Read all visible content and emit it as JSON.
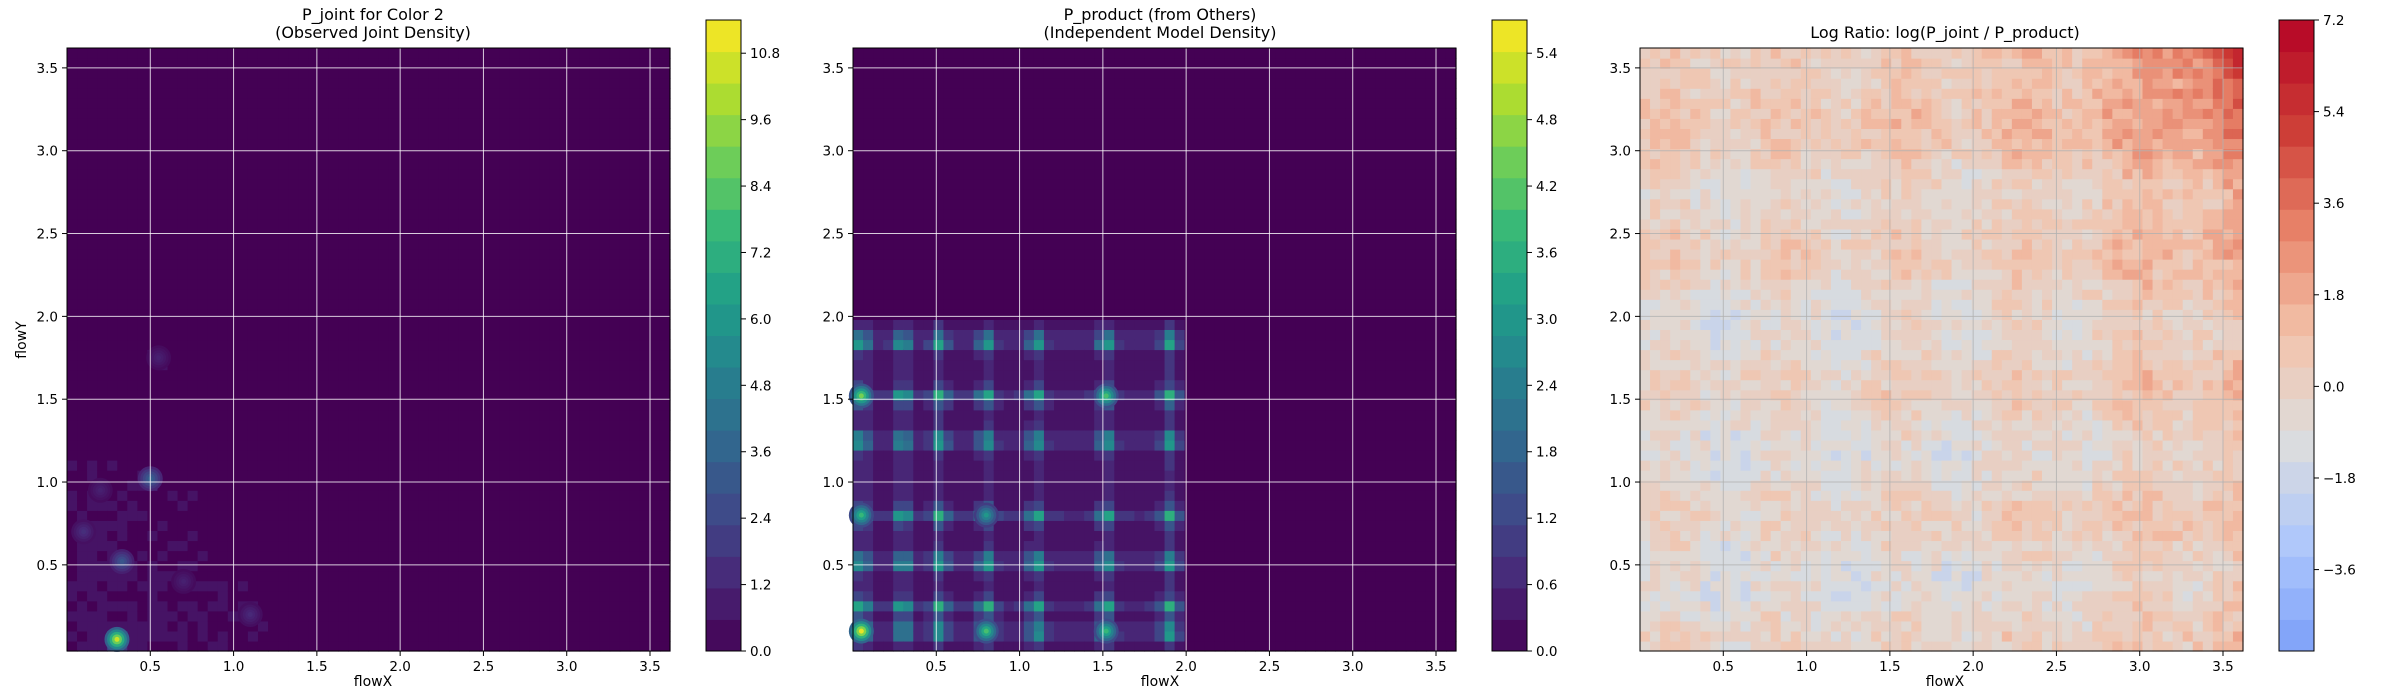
{
  "chart_data": [
    {
      "type": "heatmap",
      "title": "P_joint for Color 2",
      "subtitle": "(Observed Joint Density)",
      "xlabel": "flowX",
      "ylabel": "flowY",
      "xlim": [
        0.0,
        3.62
      ],
      "ylim": [
        -0.02,
        3.62
      ],
      "xticks": [
        "0.5",
        "1.0",
        "1.5",
        "2.0",
        "2.5",
        "3.0",
        "3.5"
      ],
      "yticks": [
        "0.5",
        "1.0",
        "1.5",
        "2.0",
        "2.5",
        "3.0",
        "3.5"
      ],
      "grid": true,
      "colormap": "viridis",
      "colorbar": {
        "min": 0.0,
        "max": 11.4,
        "ticks": [
          "0.0",
          "1.2",
          "2.4",
          "3.6",
          "4.8",
          "6.0",
          "7.2",
          "8.4",
          "9.6",
          "10.8"
        ]
      },
      "hotspots": [
        {
          "x": 0.3,
          "y": 0.05,
          "v": 10.5
        },
        {
          "x": 0.5,
          "y": 1.02,
          "v": 3.5
        },
        {
          "x": 0.33,
          "y": 0.52,
          "v": 3.0
        },
        {
          "x": 0.1,
          "y": 0.7,
          "v": 1.5
        },
        {
          "x": 0.55,
          "y": 1.75,
          "v": 1.0
        },
        {
          "x": 1.1,
          "y": 0.2,
          "v": 1.3
        },
        {
          "x": 0.7,
          "y": 0.4,
          "v": 1.0
        },
        {
          "x": 0.2,
          "y": 0.95,
          "v": 1.0
        }
      ]
    },
    {
      "type": "heatmap",
      "title": "P_product (from Others)",
      "subtitle": "(Independent Model Density)",
      "xlabel": "flowX",
      "ylabel": "",
      "xlim": [
        0.0,
        3.62
      ],
      "ylim": [
        -0.02,
        3.62
      ],
      "xticks": [
        "0.5",
        "1.0",
        "1.5",
        "2.0",
        "2.5",
        "3.0",
        "3.5"
      ],
      "yticks": [
        "0.5",
        "1.0",
        "1.5",
        "2.0",
        "2.5",
        "3.0",
        "3.5"
      ],
      "grid": true,
      "colormap": "viridis",
      "colorbar": {
        "min": 0.0,
        "max": 5.7,
        "ticks": [
          "0.0",
          "0.6",
          "1.2",
          "1.8",
          "2.4",
          "3.0",
          "3.6",
          "4.2",
          "4.8",
          "5.4"
        ]
      },
      "marginal_peaks_x": [
        0.05,
        0.3,
        0.52,
        0.8,
        1.1,
        1.52,
        1.9
      ],
      "marginal_peaks_y": [
        0.1,
        0.25,
        0.52,
        0.8,
        1.25,
        1.52,
        1.85
      ],
      "hotspots": [
        {
          "x": 0.05,
          "y": 0.1,
          "v": 5.5
        },
        {
          "x": 0.05,
          "y": 1.52,
          "v": 4.5
        },
        {
          "x": 1.52,
          "y": 1.52,
          "v": 4.0
        },
        {
          "x": 0.8,
          "y": 0.1,
          "v": 4.0
        },
        {
          "x": 1.52,
          "y": 0.1,
          "v": 3.8
        },
        {
          "x": 0.05,
          "y": 0.8,
          "v": 3.8
        },
        {
          "x": 0.8,
          "y": 0.8,
          "v": 3.0
        }
      ]
    },
    {
      "type": "heatmap",
      "title": "Log Ratio: log(P_joint / P_product)",
      "xlabel": "flowX",
      "ylabel": "",
      "xlim": [
        0.0,
        3.62
      ],
      "ylim": [
        -0.02,
        3.62
      ],
      "xticks": [
        "0.5",
        "1.0",
        "1.5",
        "2.0",
        "2.5",
        "3.0",
        "3.5"
      ],
      "yticks": [
        "0.5",
        "1.0",
        "1.5",
        "2.0",
        "2.5",
        "3.0",
        "3.5"
      ],
      "grid": true,
      "colormap": "coolwarm",
      "colorbar": {
        "min": -5.2,
        "max": 7.2,
        "ticks": [
          "−3.6",
          "−1.8",
          "0.0",
          "1.8",
          "3.6",
          "5.4",
          "7.2"
        ]
      },
      "trend": {
        "low": -2.0,
        "high": 6.5,
        "description": "values rise toward the upper-right corner"
      }
    }
  ]
}
